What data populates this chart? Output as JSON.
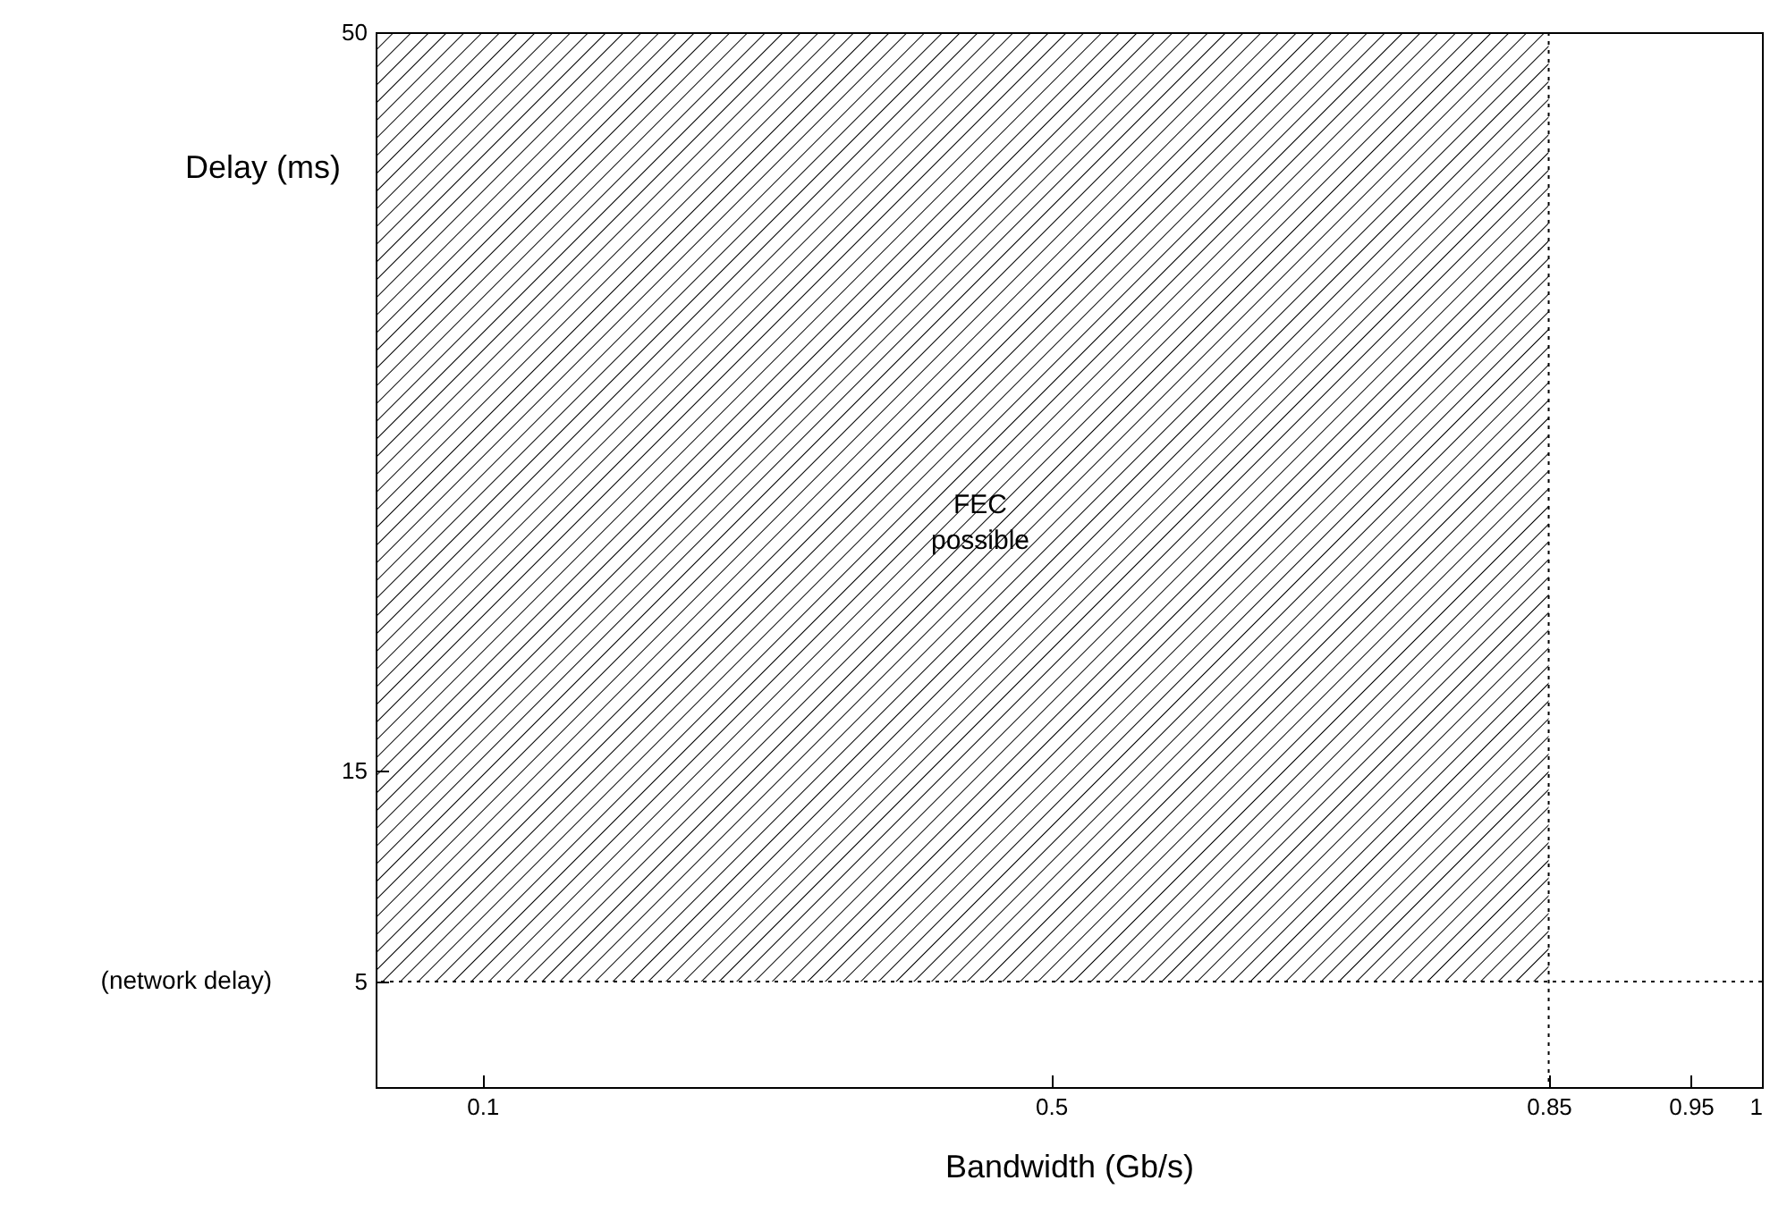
{
  "chart_data": {
    "type": "area",
    "xlabel": "Bandwidth (Gb/s)",
    "ylabel": "Delay (ms)",
    "xlim": [
      0.025,
      1
    ],
    "ylim": [
      0,
      50
    ],
    "xticks": [
      0.1,
      0.5,
      0.85,
      0.95,
      1
    ],
    "yticks": [
      5,
      15,
      50
    ],
    "grid": false,
    "series": [
      {
        "x": [
          0.025,
          0.85
        ],
        "values": [
          50,
          50
        ],
        "color": "#000000"
      }
    ],
    "ref_lines": [
      {
        "axis": "y",
        "value": 5,
        "label": "(network delay)",
        "line_style": "dotted"
      },
      {
        "axis": "x",
        "value": 0.85,
        "line_style": "dotted"
      }
    ],
    "annotations": [
      "FEC\npossible"
    ]
  }
}
